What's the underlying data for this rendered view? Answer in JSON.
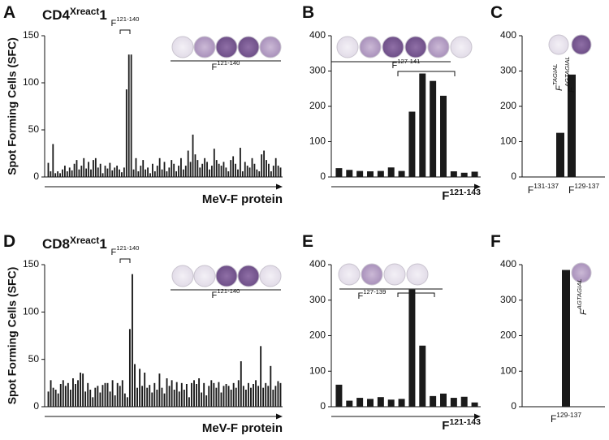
{
  "chart_data": [
    {
      "type": "bar",
      "label": "A",
      "title": {
        "base": "CD4",
        "sup": "Xreact",
        "rest": "1"
      },
      "ylabel": "Spot Forming Cells (SFC)",
      "xlabel": {
        "base": "MeV-F protein"
      },
      "ylim": [
        0,
        150
      ],
      "yticks": [
        0,
        50,
        100,
        150
      ],
      "color": "#1a1a1a",
      "annotations": [
        {
          "base": "F",
          "sup": "121-140"
        },
        {
          "base": "F",
          "sup": "121-140"
        }
      ],
      "values": [
        15,
        6,
        35,
        4,
        6,
        4,
        8,
        12,
        6,
        10,
        7,
        14,
        18,
        8,
        12,
        20,
        9,
        16,
        8,
        18,
        20,
        10,
        14,
        4,
        12,
        9,
        15,
        7,
        10,
        12,
        8,
        5,
        10,
        93,
        130,
        130,
        8,
        20,
        6,
        12,
        18,
        8,
        10,
        4,
        14,
        6,
        12,
        20,
        8,
        16,
        6,
        10,
        18,
        14,
        6,
        12,
        20,
        8,
        12,
        28,
        16,
        45,
        24,
        18,
        10,
        14,
        20,
        16,
        8,
        12,
        30,
        18,
        14,
        12,
        16,
        10,
        6,
        18,
        22,
        14,
        8,
        31,
        6,
        16,
        12,
        10,
        20,
        14,
        8,
        6,
        24,
        28,
        18,
        14,
        6,
        12,
        20,
        12,
        10
      ]
    },
    {
      "type": "bar",
      "label": "B",
      "xlabel": {
        "base": "F",
        "sup": "121-143"
      },
      "ylim": [
        0,
        400
      ],
      "yticks": [
        0,
        100,
        200,
        300,
        400
      ],
      "color": "#1a1a1a",
      "annotations": [
        {
          "base": "F",
          "sup": "127-141"
        }
      ],
      "values": [
        25,
        20,
        17,
        16,
        17,
        27,
        17,
        185,
        293,
        272,
        230,
        16,
        12,
        15
      ]
    },
    {
      "type": "bar",
      "label": "C",
      "ylim": [
        0,
        400
      ],
      "yticks": [
        0,
        100,
        200,
        300,
        400
      ],
      "color": "#1a1a1a",
      "categories": [
        {
          "base": "F",
          "sup": "131-137"
        },
        {
          "base": "F",
          "sup": "129-137"
        }
      ],
      "peptide_labels": [
        {
          "base": "F",
          "sup": "TAGIAL"
        },
        {
          "base": "F",
          "sup": "AGTAGIAL"
        }
      ],
      "values": [
        125,
        290
      ]
    },
    {
      "type": "bar",
      "label": "D",
      "title": {
        "base": "CD8",
        "sup": "Xreact",
        "rest": "1"
      },
      "ylabel": "Spot Forming Cells (SFC)",
      "xlabel": {
        "base": "MeV-F protein"
      },
      "ylim": [
        0,
        150
      ],
      "yticks": [
        0,
        50,
        100,
        150
      ],
      "color": "#1a1a1a",
      "annotations": [
        {
          "base": "F",
          "sup": "121-140"
        },
        {
          "base": "F",
          "sup": "121-140"
        }
      ],
      "values": [
        16,
        28,
        20,
        18,
        14,
        24,
        28,
        22,
        25,
        18,
        30,
        24,
        28,
        36,
        35,
        16,
        25,
        18,
        10,
        20,
        22,
        15,
        23,
        25,
        25,
        16,
        28,
        12,
        25,
        22,
        28,
        14,
        10,
        82,
        140,
        45,
        20,
        40,
        22,
        36,
        20,
        23,
        15,
        25,
        18,
        35,
        20,
        14,
        30,
        22,
        28,
        18,
        26,
        16,
        25,
        18,
        24,
        10,
        25,
        28,
        24,
        30,
        15,
        25,
        12,
        22,
        28,
        25,
        20,
        26,
        15,
        22,
        24,
        22,
        18,
        25,
        20,
        28,
        48,
        22,
        18,
        25,
        20,
        24,
        28,
        22,
        64,
        20,
        25,
        22,
        43,
        18,
        22,
        27,
        25
      ]
    },
    {
      "type": "bar",
      "label": "E",
      "xlabel": {
        "base": "F",
        "sup": "121-143"
      },
      "ylim": [
        0,
        400
      ],
      "yticks": [
        0,
        100,
        200,
        300,
        400
      ],
      "color": "#1a1a1a",
      "annotations": [
        {
          "base": "F",
          "sup": "127-139"
        }
      ],
      "values": [
        62,
        17,
        25,
        22,
        27,
        20,
        22,
        330,
        172,
        30,
        37,
        25,
        28,
        12
      ]
    },
    {
      "type": "bar",
      "label": "F",
      "ylim": [
        0,
        400
      ],
      "yticks": [
        0,
        100,
        200,
        300,
        400
      ],
      "color": "#1a1a1a",
      "categories": [
        {
          "base": "F",
          "sup": "129-137"
        }
      ],
      "peptide_labels": [
        {
          "base": "F",
          "sup": "AGTAGIAL"
        }
      ],
      "values": [
        385
      ]
    }
  ]
}
